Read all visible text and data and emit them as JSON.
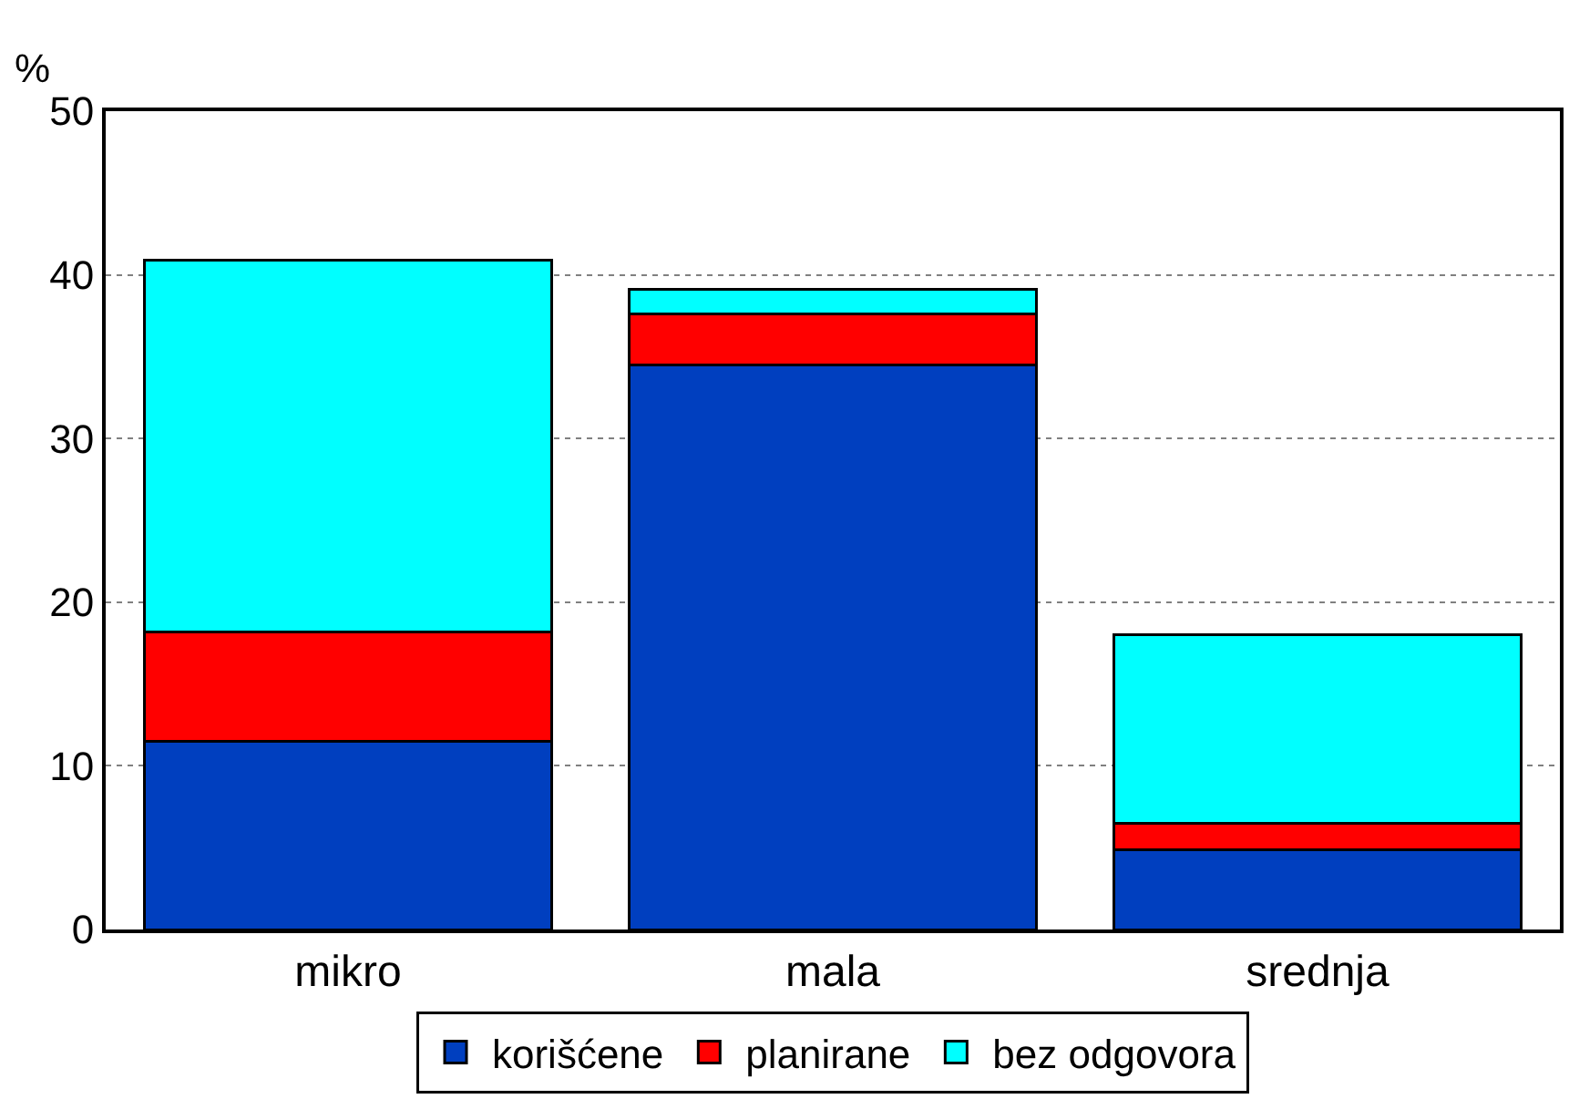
{
  "chart_data": {
    "type": "bar",
    "ylabel": "%",
    "categories": [
      "mikro",
      "mala",
      "srednja"
    ],
    "stacked": true,
    "series": [
      {
        "name": "korišćene",
        "color": "#003fbf",
        "values": [
          11.5,
          34.5,
          4.9
        ]
      },
      {
        "name": "planirane",
        "color": "#ff0000",
        "values": [
          6.7,
          3.1,
          1.6
        ]
      },
      {
        "name": "bez odgovora",
        "color": "#00ffff",
        "values": [
          22.7,
          1.5,
          11.5
        ]
      }
    ],
    "ylim": [
      0,
      50
    ],
    "yticks": [
      0,
      10,
      20,
      30,
      40,
      50
    ],
    "grid": "y",
    "legend": "bottom"
  }
}
